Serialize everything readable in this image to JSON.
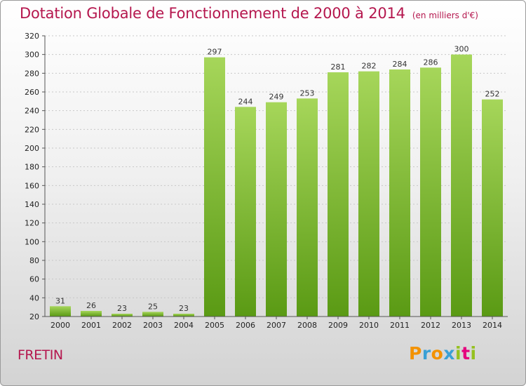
{
  "title": "Dotation Globale de Fonctionnement de 2000 à 2014",
  "unit": "(en milliers d'€)",
  "commune": "FRETIN",
  "logo": {
    "letters": [
      "P",
      "r",
      "o",
      "x",
      "i",
      "t",
      "i"
    ],
    "colors": [
      "#f39200",
      "#3aa0d5",
      "#f39200",
      "#3aa0d5",
      "#95c11f",
      "#e5007e",
      "#95c11f"
    ]
  },
  "colors": {
    "bar_top": "#a6d65a",
    "bar_bottom": "#5a9a14",
    "title": "#b5174e"
  },
  "chart_data": {
    "type": "bar",
    "categories": [
      "2000",
      "2001",
      "2002",
      "2003",
      "2004",
      "2005",
      "2006",
      "2007",
      "2008",
      "2009",
      "2010",
      "2011",
      "2012",
      "2013",
      "2014"
    ],
    "values": [
      31,
      26,
      23,
      25,
      23,
      297,
      244,
      249,
      253,
      281,
      282,
      284,
      286,
      300,
      252
    ],
    "ylim": [
      20,
      320
    ],
    "yticks": [
      20,
      40,
      60,
      80,
      100,
      120,
      140,
      160,
      180,
      200,
      220,
      240,
      260,
      280,
      300,
      320
    ],
    "grid": true,
    "title": "Dotation Globale de Fonctionnement de 2000 à 2014",
    "xlabel": "",
    "ylabel": ""
  }
}
